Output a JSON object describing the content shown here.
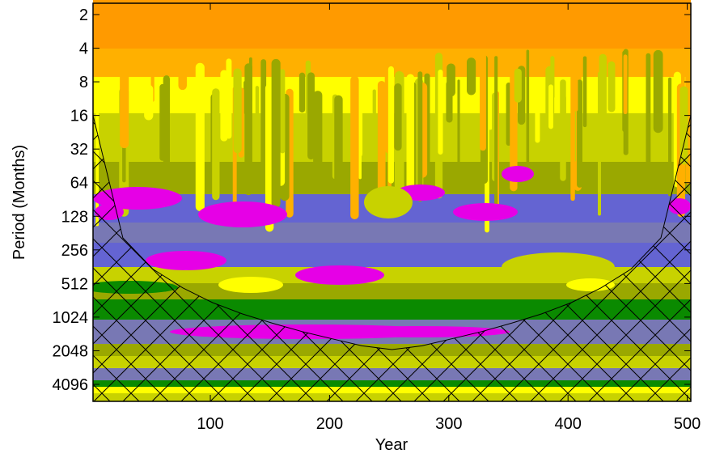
{
  "chart_data": {
    "type": "heatmap",
    "title": "",
    "xlabel": "Year",
    "ylabel": "Period (Months)",
    "x_ticks": [
      100,
      200,
      300,
      400,
      500
    ],
    "x_tick_labels": [
      "100",
      "200",
      "300",
      "400",
      "500"
    ],
    "xlim": [
      0,
      500
    ],
    "y_scale": "log2",
    "y_ticks": [
      2,
      4,
      8,
      16,
      32,
      64,
      128,
      256,
      512,
      1024,
      2048,
      4096
    ],
    "y_tick_labels": [
      "2",
      "4",
      "8",
      "16",
      "32",
      "64",
      "128",
      "256",
      "512",
      "1024",
      "2048",
      "4096"
    ],
    "ylim": [
      2,
      6000
    ],
    "y_inverted": true,
    "colors": {
      "high": "#ff9a00",
      "orange": "#ffb000",
      "yellow": "#ffff00",
      "yellow_green": "#c8d200",
      "olive": "#9aa800",
      "green": "#0a8a00",
      "blue": "#6464d2",
      "slate": "#7878b4",
      "magenta": "#e600e6"
    },
    "cone_of_influence": {
      "x": [
        0,
        25,
        50,
        75,
        100,
        125,
        150,
        175,
        200,
        225,
        250,
        275,
        300,
        325,
        350,
        375,
        400,
        425,
        450,
        475,
        500
      ],
      "period": [
        16,
        200,
        380,
        560,
        760,
        960,
        1160,
        1380,
        1600,
        1850,
        2000,
        1850,
        1600,
        1380,
        1160,
        960,
        760,
        560,
        380,
        200,
        16
      ]
    },
    "hatched_region": "outside-cone"
  }
}
